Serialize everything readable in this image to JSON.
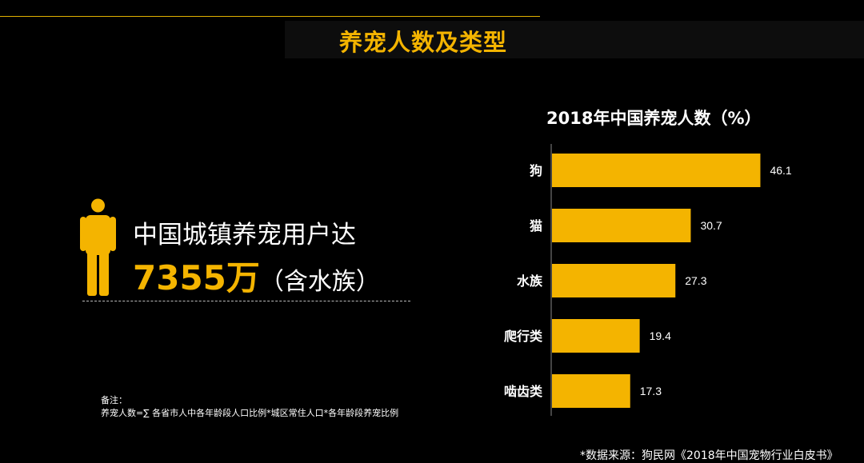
{
  "header": {
    "title": "养宠人数及类型"
  },
  "stat": {
    "line1": "中国城镇养宠用户达",
    "number": "7355万",
    "suffix": "（含水族）"
  },
  "note": {
    "label": "备注：",
    "text": "养宠人数=∑ 各省市人中各年龄段人口比例*城区常住人口*各年龄段养宠比例"
  },
  "chart_data": {
    "type": "bar",
    "orientation": "horizontal",
    "title": "2018年中国养宠人数（%）",
    "categories": [
      "狗",
      "猫",
      "水族",
      "爬行类",
      "啮齿类"
    ],
    "values": [
      46.1,
      30.7,
      27.3,
      19.4,
      17.3
    ],
    "value_labels": [
      "46.1",
      "30.7",
      "27.3",
      "19.4",
      "17.3"
    ],
    "bar_color": "#f4b400",
    "grid": false,
    "legend": "none"
  },
  "source": "*数据来源：狗民网《2018年中国宠物行业白皮书》",
  "colors": {
    "accent": "#f4b400",
    "background": "#000000",
    "text": "#ffffff"
  }
}
